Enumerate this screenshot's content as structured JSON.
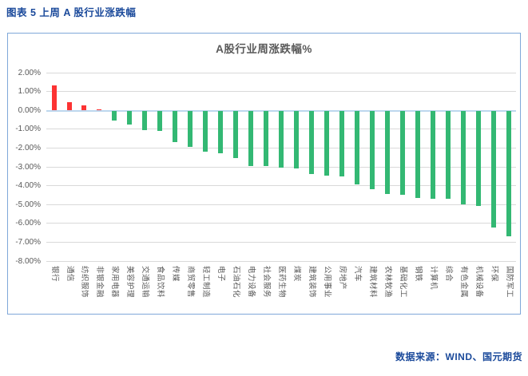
{
  "header": {
    "title": "图表 5 上周 A 股行业涨跌幅"
  },
  "footer": {
    "source": "数据来源：WIND、国元期货"
  },
  "chart_data": {
    "type": "bar",
    "title": "A股行业周涨跌幅%",
    "unit": "%",
    "categories": [
      "银行",
      "通信",
      "纺织服饰",
      "非银金融",
      "家用电器",
      "美容护理",
      "交通运输",
      "食品饮料",
      "传媒",
      "商贸零售",
      "轻工制造",
      "电子",
      "石油石化",
      "电力设备",
      "社会服务",
      "医药生物",
      "煤炭",
      "建筑装饰",
      "公用事业",
      "房地产",
      "汽车",
      "建筑材料",
      "农林牧渔",
      "基础化工",
      "钢铁",
      "计算机",
      "综合",
      "有色金属",
      "机械设备",
      "环保",
      "国防军工"
    ],
    "values": [
      1.31,
      0.43,
      0.26,
      0.05,
      -0.53,
      -0.74,
      -1.03,
      -1.08,
      -1.67,
      -1.92,
      -2.19,
      -2.26,
      -2.51,
      -2.92,
      -2.94,
      -3.03,
      -3.08,
      -3.35,
      -3.46,
      -3.49,
      -3.9,
      -4.15,
      -4.44,
      -4.45,
      -4.64,
      -4.67,
      -4.69,
      -4.96,
      -5.04,
      -6.22,
      -6.68
    ],
    "ylim": [
      -8,
      2
    ],
    "yticks": [
      2,
      1,
      0,
      -1,
      -2,
      -3,
      -4,
      -5,
      -6,
      -7,
      -8
    ],
    "ytick_labels": [
      "2.00%",
      "1.00%",
      "0.00%",
      "-1.00%",
      "-2.00%",
      "-3.00%",
      "-4.00%",
      "-5.00%",
      "-6.00%",
      "-7.00%",
      "-8.00%"
    ],
    "legend": "none",
    "grid": "horizontal",
    "colors": {
      "positive": "#FC3333",
      "negative": "#33B873",
      "grid": "#D9D9D9",
      "zero_line": "#BDD7EE",
      "chart_border": "#7FA8D9",
      "title_text": "#595959",
      "axis_text": "#595959",
      "heading_text": "#1B4A9B"
    }
  }
}
